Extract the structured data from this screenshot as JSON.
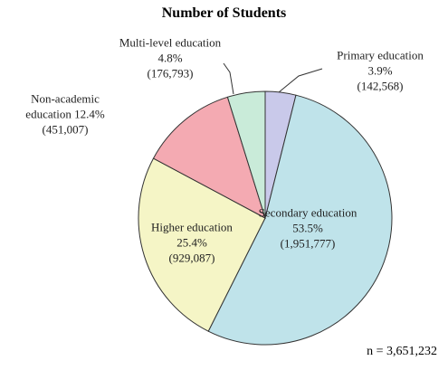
{
  "chart_data": {
    "type": "pie",
    "title": "Number of Students",
    "categories": [
      "Primary education",
      "Secondary education",
      "Higher education",
      "Non-academic education",
      "Multi-level education"
    ],
    "values": [
      3.9,
      53.5,
      25.4,
      12.4,
      4.8
    ],
    "value_labels": [
      "3.9%",
      "53.5%",
      "25.4%",
      "12.4%",
      "4.8%"
    ],
    "counts": [
      142568,
      1951777,
      929087,
      451007,
      176793
    ],
    "count_labels": [
      "(142,568)",
      "(1,951,777)",
      "(929,087)",
      "(451,007)",
      "(176,793)"
    ],
    "colors": [
      "#c9c9ea",
      "#bfe3ea",
      "#f5f5c6",
      "#f4aab2",
      "#c9ebd9"
    ],
    "note": "n = 3,651,232"
  }
}
